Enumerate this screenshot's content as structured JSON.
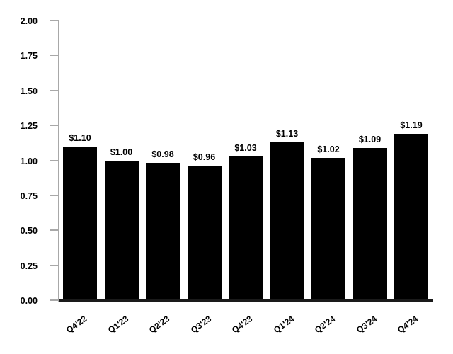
{
  "chart_data": {
    "type": "bar",
    "title": "",
    "categories": [
      "Q4'22",
      "Q1'23",
      "Q2'23",
      "Q3'23",
      "Q4'23",
      "Q1'24",
      "Q2'24",
      "Q3'24",
      "Q4'24"
    ],
    "values": [
      1.1,
      1.0,
      0.98,
      0.96,
      1.03,
      1.13,
      1.02,
      1.09,
      1.19
    ],
    "value_labels": [
      "$1.10",
      "$1.00",
      "$0.98",
      "$0.96",
      "$1.03",
      "$1.13",
      "$1.02",
      "$1.09",
      "$1.19"
    ],
    "xlabel": "",
    "ylabel": "",
    "ylim": [
      0.0,
      2.0
    ],
    "y_tick_step": 0.25,
    "y_tick_labels": [
      "0.00",
      "0.25",
      "0.50",
      "0.75",
      "1.00",
      "1.25",
      "1.50",
      "1.75",
      "2.00"
    ],
    "grid": "off",
    "legend_position": "none",
    "bar_color": "#000000",
    "axis_spine_color": "#a8a8a8",
    "baseline_color": "#1a1a1a",
    "label_color": "#000000",
    "x_tick_rotation_deg": 36
  }
}
